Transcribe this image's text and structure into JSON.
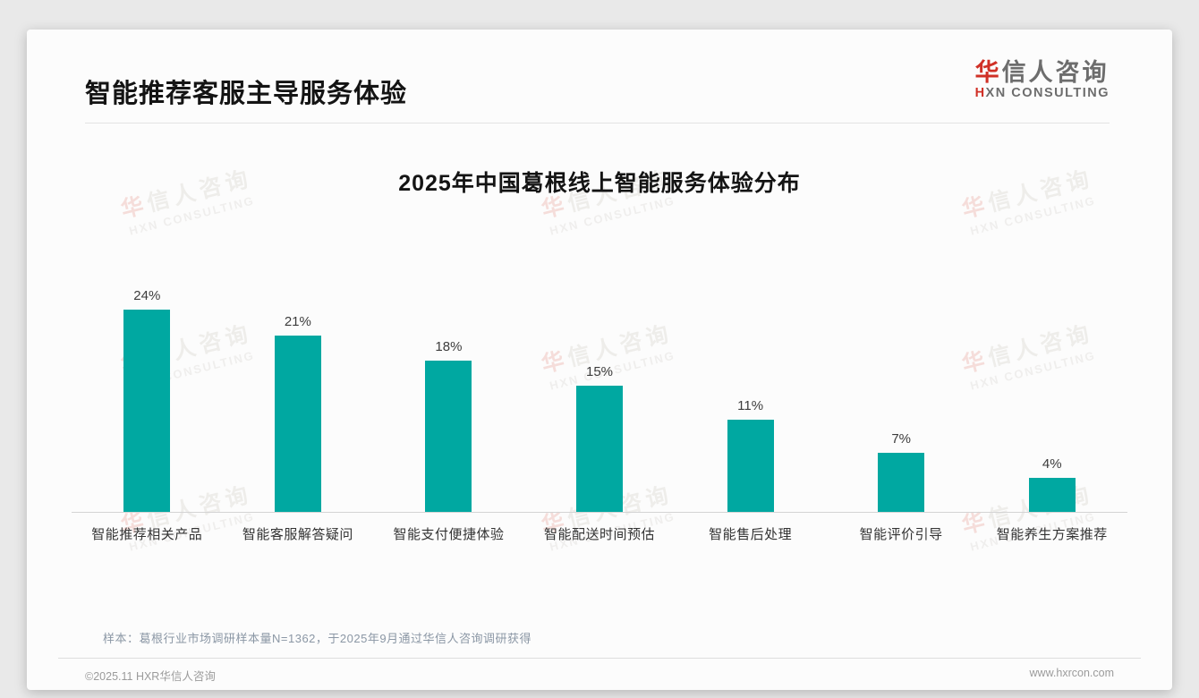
{
  "header": {
    "title": "智能推荐客服主导服务体验",
    "logo": {
      "cn_first": "华",
      "cn_rest": "信人咨询",
      "en_first": "H",
      "en_rest": "XN CONSULTING"
    }
  },
  "chart_data": {
    "type": "bar",
    "title": "2025年中国葛根线上智能服务体验分布",
    "categories": [
      "智能推荐相关产品",
      "智能客服解答疑问",
      "智能支付便捷体验",
      "智能配送时间预估",
      "智能售后处理",
      "智能评价引导",
      "智能养生方案推荐"
    ],
    "values": [
      24,
      21,
      18,
      15,
      11,
      7,
      4
    ],
    "value_labels": [
      "24%",
      "21%",
      "18%",
      "15%",
      "11%",
      "7%",
      "4%"
    ],
    "unit": "%",
    "xlabel": "",
    "ylabel": "",
    "ylim": [
      0,
      26
    ],
    "grid": false,
    "legend": false,
    "bar_color": "#00a8a1"
  },
  "watermark": {
    "cn_first": "华",
    "cn_rest": "信人咨询",
    "en": "HXN CONSULTING"
  },
  "footer": {
    "note": "样本：葛根行业市场调研样本量N=1362，于2025年9月通过华信人咨询调研获得",
    "copyright": "©2025.11 HXR华信人咨询",
    "website": "www.hxrcon.com"
  }
}
